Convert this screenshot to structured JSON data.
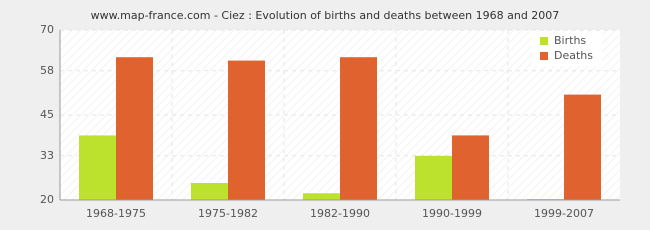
{
  "chart_data": {
    "type": "bar",
    "title": "www.map-france.com - Ciez : Evolution of births and deaths between 1968 and 2007",
    "categories": [
      "1968-1975",
      "1975-1982",
      "1982-1990",
      "1990-1999",
      "1999-2007"
    ],
    "series": [
      {
        "name": "Births",
        "color": "#bde22e",
        "values": [
          39,
          25,
          22,
          33,
          20
        ]
      },
      {
        "name": "Deaths",
        "color": "#e0622e",
        "values": [
          62,
          61,
          62,
          39,
          51
        ]
      }
    ],
    "ylim": [
      20,
      70
    ],
    "yticks": [
      20,
      33,
      45,
      58,
      70
    ],
    "grid": true,
    "legend": "top-right"
  }
}
